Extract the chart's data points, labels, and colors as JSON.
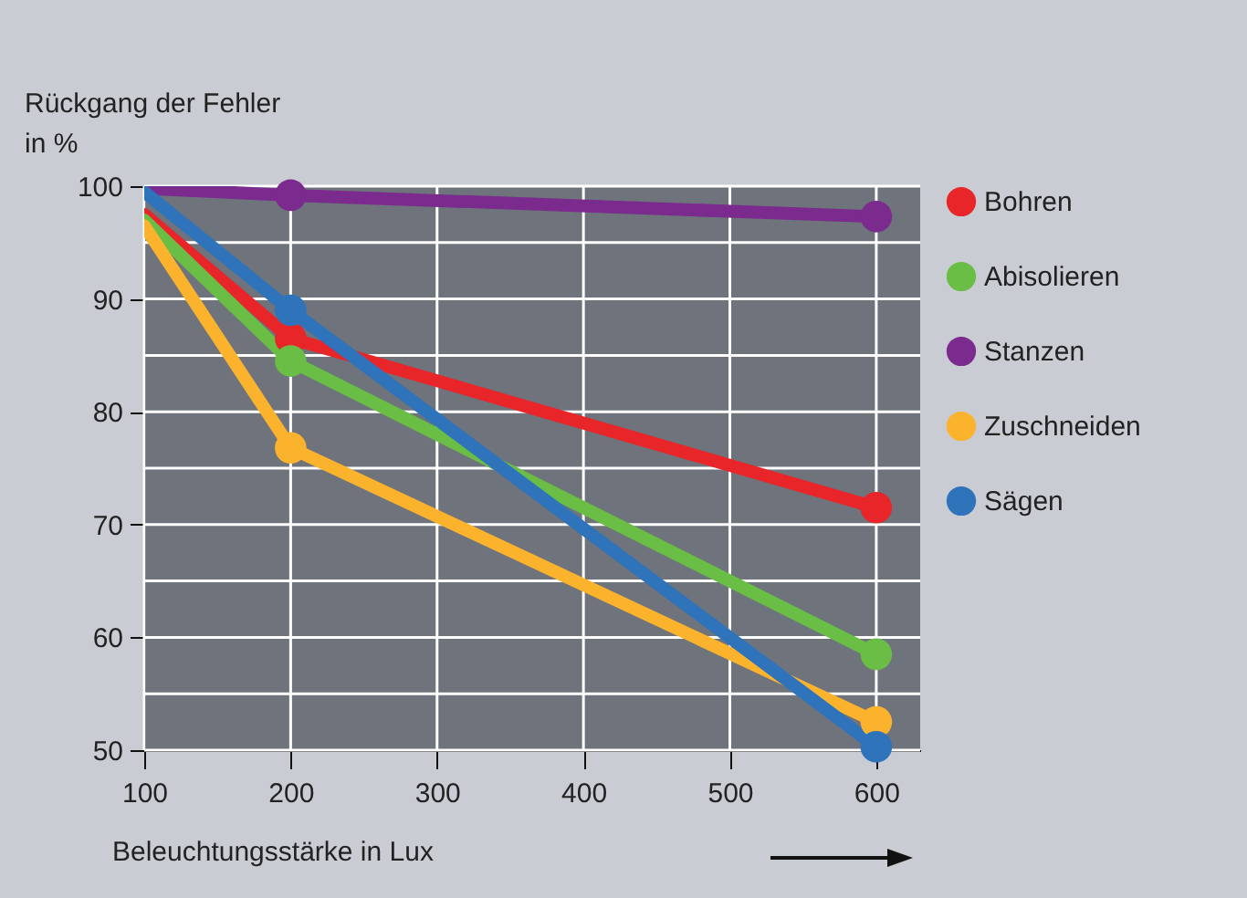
{
  "chart_data": {
    "type": "line",
    "xlabel": "Beleuchtungsstärke in Lux",
    "ylabel": "Rückgang der Fehler\nin %",
    "x": [
      100,
      200,
      600
    ],
    "series": [
      {
        "name": "Bohren",
        "color": "#e8262a",
        "values": [
          97.5,
          86.5,
          71.5
        ]
      },
      {
        "name": "Abisolieren",
        "color": "#6abd45",
        "values": [
          97,
          84.5,
          58.5
        ]
      },
      {
        "name": "Stanzen",
        "color": "#7b2a8e",
        "values": [
          99.8,
          99.2,
          97.3
        ]
      },
      {
        "name": "Zuschneiden",
        "color": "#fbb32e",
        "values": [
          96.5,
          76.8,
          52.5
        ]
      },
      {
        "name": "Sägen",
        "color": "#2f73bb",
        "values": [
          99.5,
          89,
          50.3
        ]
      }
    ],
    "xlim": [
      100,
      630
    ],
    "xticks": [
      100,
      200,
      300,
      400,
      500,
      600
    ],
    "ylim": [
      50,
      100
    ],
    "yticks": [
      50,
      {
        "value": 55,
        "label": null
      },
      60,
      {
        "value": 65,
        "label": null
      },
      70,
      {
        "value": 75,
        "label": null
      },
      80,
      {
        "value": 85,
        "label": null
      },
      90,
      {
        "value": 95,
        "label": null
      },
      100
    ],
    "grid": true,
    "legend": "right",
    "marker": "circle",
    "line_style": "solid"
  }
}
